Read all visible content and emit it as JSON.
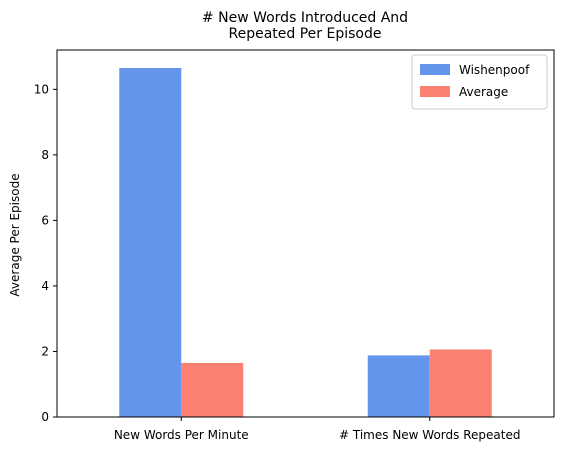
{
  "chart_data": {
    "type": "bar",
    "title_lines": [
      "# New Words Introduced And",
      "Repeated Per Episode"
    ],
    "xlabel": "",
    "ylabel": "Average Per Episode",
    "categories": [
      "New Words Per Minute",
      "# Times New Words Repeated"
    ],
    "series": [
      {
        "name": "Wishenpoof",
        "values": [
          10.65,
          1.88
        ],
        "color": "#6495ED"
      },
      {
        "name": "Average",
        "values": [
          1.65,
          2.06
        ],
        "color": "#FA8072"
      }
    ],
    "ylim": [
      0,
      11.2
    ],
    "yticks": [
      0,
      2,
      4,
      6,
      8,
      10
    ],
    "grid": false,
    "legend_position": "top-right"
  }
}
